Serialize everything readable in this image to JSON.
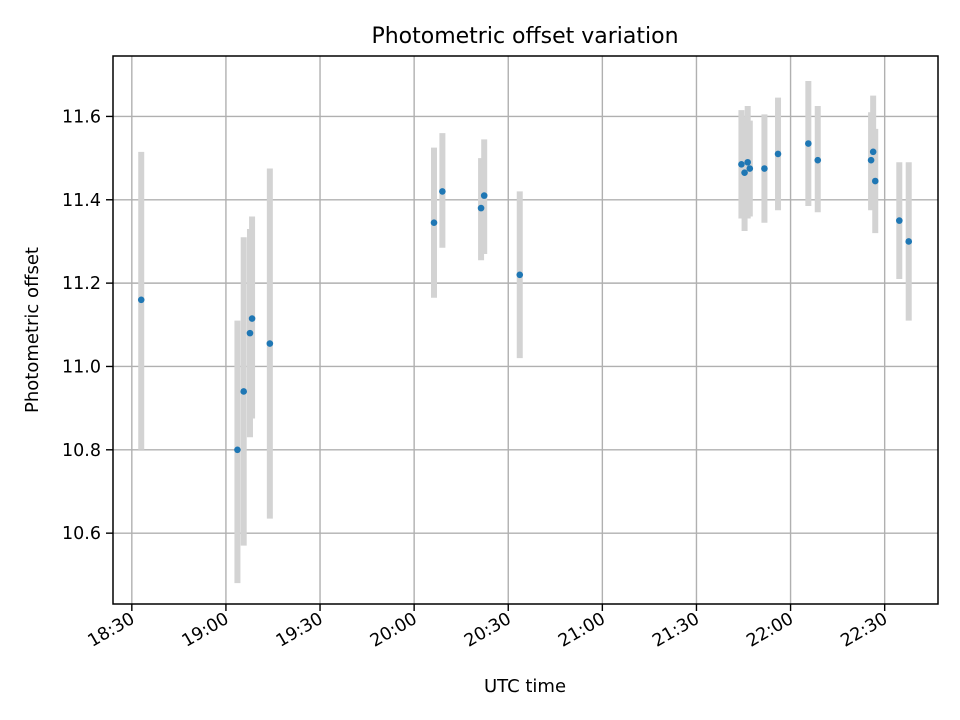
{
  "chart_data": {
    "type": "scatter",
    "title": "Photometric offset variation",
    "xlabel": "UTC time",
    "ylabel": "Photometric offset",
    "x_unit": "UTC time (HH:MM)",
    "xlim": [
      "18:24",
      "22:47"
    ],
    "ylim": [
      10.43,
      11.745
    ],
    "x_ticks": [
      "18:30",
      "19:00",
      "19:30",
      "20:00",
      "20:30",
      "21:00",
      "21:30",
      "22:00",
      "22:30"
    ],
    "y_ticks": [
      10.6,
      10.8,
      11.0,
      11.2,
      11.4,
      11.6
    ],
    "grid": true,
    "error_bars": true,
    "colors": {
      "points": "#1f77b4",
      "error_bars": "#d3d3d3",
      "grid": "#b0b0b0"
    },
    "points": [
      {
        "x": "18:33:00",
        "y": 11.16,
        "y_low": 10.8,
        "y_high": 11.515
      },
      {
        "x": "19:03:40",
        "y": 10.8,
        "y_low": 10.48,
        "y_high": 11.11
      },
      {
        "x": "19:05:40",
        "y": 10.94,
        "y_low": 10.57,
        "y_high": 11.31
      },
      {
        "x": "19:07:40",
        "y": 11.08,
        "y_low": 10.83,
        "y_high": 11.33
      },
      {
        "x": "19:08:20",
        "y": 11.115,
        "y_low": 10.875,
        "y_high": 11.36
      },
      {
        "x": "19:14:00",
        "y": 11.055,
        "y_low": 10.635,
        "y_high": 11.475
      },
      {
        "x": "20:06:20",
        "y": 11.345,
        "y_low": 11.165,
        "y_high": 11.525
      },
      {
        "x": "20:09:00",
        "y": 11.42,
        "y_low": 11.285,
        "y_high": 11.56
      },
      {
        "x": "20:21:20",
        "y": 11.38,
        "y_low": 11.255,
        "y_high": 11.5
      },
      {
        "x": "20:22:20",
        "y": 11.41,
        "y_low": 11.27,
        "y_high": 11.545
      },
      {
        "x": "20:33:40",
        "y": 11.22,
        "y_low": 11.02,
        "y_high": 11.42
      },
      {
        "x": "21:44:20",
        "y": 11.485,
        "y_low": 11.355,
        "y_high": 11.615
      },
      {
        "x": "21:45:20",
        "y": 11.465,
        "y_low": 11.325,
        "y_high": 11.6
      },
      {
        "x": "21:46:20",
        "y": 11.49,
        "y_low": 11.355,
        "y_high": 11.625
      },
      {
        "x": "21:47:00",
        "y": 11.475,
        "y_low": 11.36,
        "y_high": 11.59
      },
      {
        "x": "21:51:40",
        "y": 11.475,
        "y_low": 11.345,
        "y_high": 11.605
      },
      {
        "x": "21:56:00",
        "y": 11.51,
        "y_low": 11.375,
        "y_high": 11.645
      },
      {
        "x": "22:05:40",
        "y": 11.535,
        "y_low": 11.385,
        "y_high": 11.685
      },
      {
        "x": "22:08:40",
        "y": 11.495,
        "y_low": 11.37,
        "y_high": 11.625
      },
      {
        "x": "22:25:40",
        "y": 11.495,
        "y_low": 11.375,
        "y_high": 11.61
      },
      {
        "x": "22:26:20",
        "y": 11.515,
        "y_low": 11.38,
        "y_high": 11.65
      },
      {
        "x": "22:27:00",
        "y": 11.445,
        "y_low": 11.32,
        "y_high": 11.57
      },
      {
        "x": "22:34:40",
        "y": 11.35,
        "y_low": 11.21,
        "y_high": 11.49
      },
      {
        "x": "22:37:40",
        "y": 11.3,
        "y_low": 11.11,
        "y_high": 11.49
      }
    ]
  }
}
